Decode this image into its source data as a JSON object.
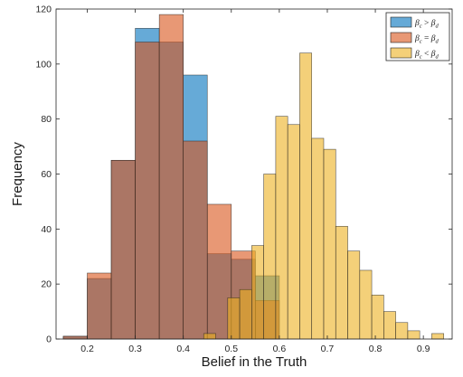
{
  "chart_data": {
    "type": "bar",
    "subtype": "overlaid histogram",
    "xlabel": "Belief in the Truth",
    "ylabel": "Frequency",
    "xlim": [
      0.135,
      0.96
    ],
    "ylim": [
      0,
      120
    ],
    "xticks": [
      "0.2",
      "0.3",
      "0.4",
      "0.5",
      "0.6",
      "0.7",
      "0.8",
      "0.9"
    ],
    "yticks": [
      "0",
      "20",
      "40",
      "60",
      "80",
      "100",
      "120"
    ],
    "grid": false,
    "legend_position": "top-right",
    "series": [
      {
        "name": "β_c > β_d",
        "legend_main": "β",
        "legend_sub1": "c",
        "legend_op": " > ",
        "legend_main2": "β",
        "legend_sub2": "d",
        "color": "#0072BD",
        "opacity": 0.6,
        "bin_edges": [
          0.15,
          0.2,
          0.25,
          0.3,
          0.35,
          0.4,
          0.45,
          0.5,
          0.55,
          0.6
        ],
        "values": [
          1,
          22,
          65,
          113,
          108,
          96,
          31,
          29,
          23
        ]
      },
      {
        "name": "β_c = β_d",
        "legend_main": "β",
        "legend_sub1": "c",
        "legend_op": " = ",
        "legend_main2": "β",
        "legend_sub2": "d",
        "color": "#D95319",
        "opacity": 0.6,
        "bin_edges": [
          0.15,
          0.2,
          0.25,
          0.3,
          0.35,
          0.4,
          0.45,
          0.5,
          0.55,
          0.6
        ],
        "values": [
          1,
          24,
          65,
          108,
          118,
          72,
          49,
          32,
          14
        ]
      },
      {
        "name": "β_c < β_d",
        "legend_main": "β",
        "legend_sub1": "c",
        "legend_op": " < ",
        "legend_main2": "β",
        "legend_sub2": "d",
        "color": "#EDB120",
        "opacity": 0.6,
        "bin_edges": [
          0.4425,
          0.4675,
          0.4925,
          0.5175,
          0.5425,
          0.5675,
          0.5925,
          0.6175,
          0.6425,
          0.6675,
          0.6925,
          0.7175,
          0.7425,
          0.7675,
          0.7925,
          0.8175,
          0.8425,
          0.8675,
          0.8925,
          0.9175,
          0.9425
        ],
        "values": [
          2,
          0,
          15,
          18,
          34,
          60,
          81,
          78,
          104,
          73,
          69,
          41,
          32,
          25,
          16,
          10,
          6,
          3,
          0,
          2
        ]
      }
    ]
  }
}
